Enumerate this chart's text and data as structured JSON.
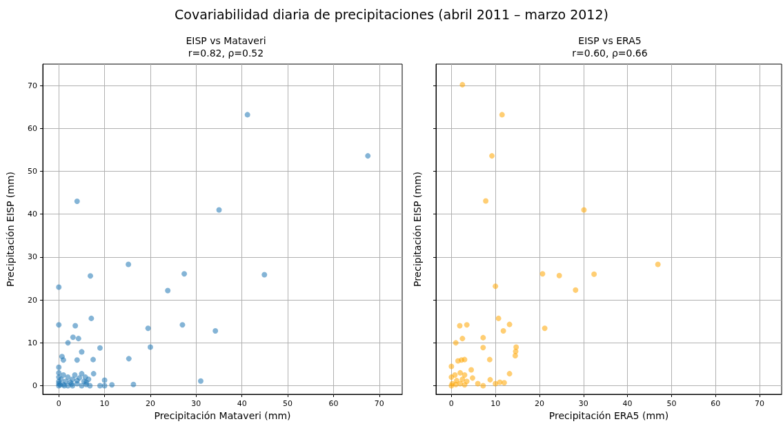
{
  "chart_data": [
    {
      "type": "scatter",
      "title": "Covariabilidad diaria de precipitaciones (abril 2011 – marzo 2012)",
      "subtitle": "EISP vs Mataveri\nr=0.82, ρ=0.52",
      "xlabel": "Precipitación Mataveri (mm)",
      "ylabel": "Precipitación EISP (mm)",
      "xlim": [
        -3.5,
        75
      ],
      "ylim": [
        -2,
        75
      ],
      "xticks": [
        0,
        10,
        20,
        30,
        40,
        50,
        60,
        70
      ],
      "yticks": [
        0,
        10,
        20,
        30,
        40,
        50,
        60,
        70
      ],
      "grid": true,
      "marker": "circle",
      "series": [
        {
          "color": "#1f77b4",
          "x": [
            41.2,
            67.5,
            4,
            35,
            15.2,
            6.9,
            27.4,
            44.9,
            0,
            23.8,
            0,
            3.6,
            7.1,
            19.5,
            27,
            34.2,
            3.1,
            4.3,
            2,
            9,
            20,
            5,
            0.7,
            1,
            4,
            7.5,
            15.3,
            7.6,
            31,
            16.3,
            10,
            11.6,
            9,
            10,
            0,
            0,
            0,
            0,
            0,
            0,
            0.5,
            1,
            1,
            1.5,
            2,
            2,
            2.5,
            3,
            3,
            3.5,
            4,
            4.5,
            5,
            5,
            5.5,
            6,
            6.5,
            6.8,
            0.3,
            1.2,
            2.8,
            4,
            5.8,
            6
          ],
          "values": [
            63.2,
            53.6,
            43,
            41,
            28.3,
            25.6,
            26.1,
            25.9,
            23,
            22.2,
            14.2,
            14,
            15.7,
            13.4,
            14.2,
            12.8,
            11.3,
            11,
            10,
            8.8,
            9,
            7.9,
            6.8,
            6,
            6,
            6.1,
            6.3,
            2.8,
            1.1,
            0.3,
            1.3,
            0.2,
            0,
            0,
            4.3,
            3,
            2,
            1,
            0.5,
            0,
            1.5,
            2.5,
            0.3,
            1,
            2,
            0,
            0.8,
            1.5,
            0,
            2.5,
            0.5,
            1.8,
            2.8,
            0,
            1,
            0.3,
            1.5,
            0,
            0.2,
            0,
            0.4,
            1.2,
            2,
            0.8
          ]
        }
      ]
    },
    {
      "type": "scatter",
      "subtitle": "EISP vs ERA5\nr=0.60, ρ=0.66",
      "xlabel": "Precipitación ERA5 (mm)",
      "ylabel": "Precipitación EISP (mm)",
      "xlim": [
        -3.5,
        75
      ],
      "ylim": [
        -2,
        75
      ],
      "xticks": [
        0,
        10,
        20,
        30,
        40,
        50,
        60,
        70
      ],
      "yticks": [
        0,
        10,
        20,
        30,
        40,
        50,
        60,
        70
      ],
      "grid": true,
      "marker": "circle",
      "tick_labels": "x",
      "series": [
        {
          "color": "#ffa500",
          "x": [
            2.5,
            11.5,
            9.2,
            7.8,
            30.1,
            46.9,
            10,
            20.7,
            24.5,
            32.4,
            28.2,
            10.7,
            1.9,
            3.5,
            13.2,
            11.8,
            21.2,
            2.5,
            7.2,
            1,
            7.2,
            14.7,
            14.5,
            14.6,
            8.7,
            1.5,
            2.3,
            3,
            13.2,
            4.5,
            4.8,
            6,
            8.8,
            10,
            11,
            12,
            7.2,
            0,
            0,
            0,
            1,
            2,
            2,
            2.5,
            3,
            3,
            3.5,
            0.2,
            1.2,
            0.8
          ],
          "values": [
            70.2,
            63.2,
            53.6,
            43.1,
            41,
            28.3,
            23.2,
            26.1,
            25.7,
            26,
            22.3,
            15.7,
            14,
            14.2,
            14.3,
            12.8,
            13.4,
            11,
            11.2,
            10,
            8.9,
            9,
            7,
            8,
            6.1,
            5.8,
            6,
            6.1,
            2.8,
            3.7,
            1.8,
            0.5,
            1.4,
            0.5,
            0.8,
            0.7,
            0,
            0,
            2,
            4.5,
            0.3,
            0.5,
            3,
            1.5,
            0.2,
            2.5,
            1,
            0.5,
            1.2,
            2.5
          ]
        }
      ]
    }
  ]
}
